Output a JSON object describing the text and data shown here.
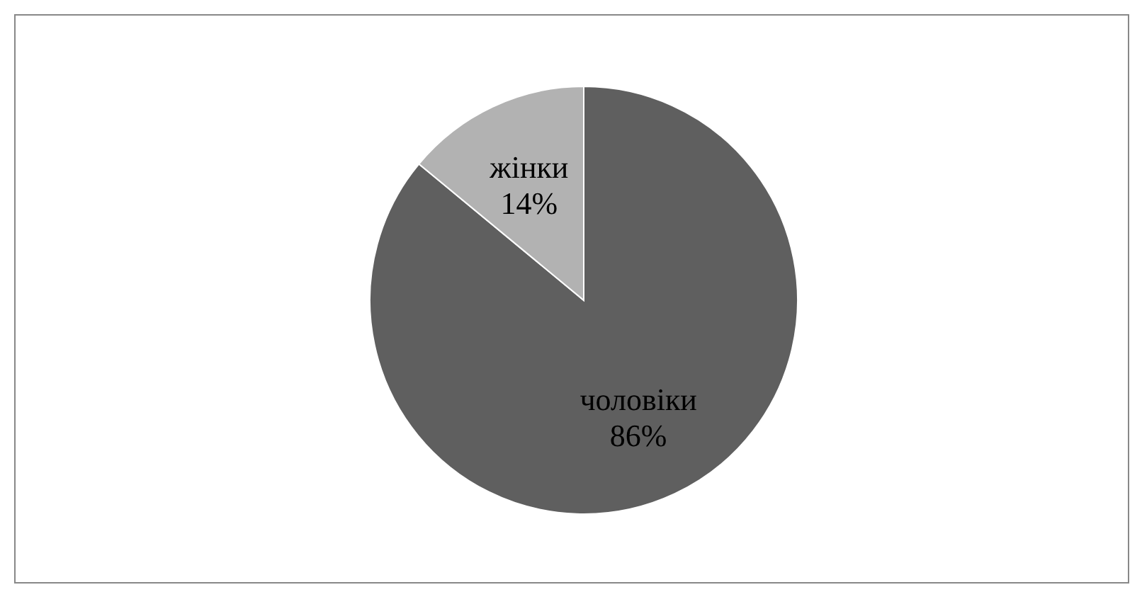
{
  "chart_data": {
    "type": "pie",
    "categories": [
      "чоловіки",
      "жінки"
    ],
    "values": [
      86,
      14
    ],
    "colors": [
      "#5f5f5f",
      "#b2b2b2"
    ],
    "value_labels": [
      "86%",
      "14%"
    ]
  }
}
